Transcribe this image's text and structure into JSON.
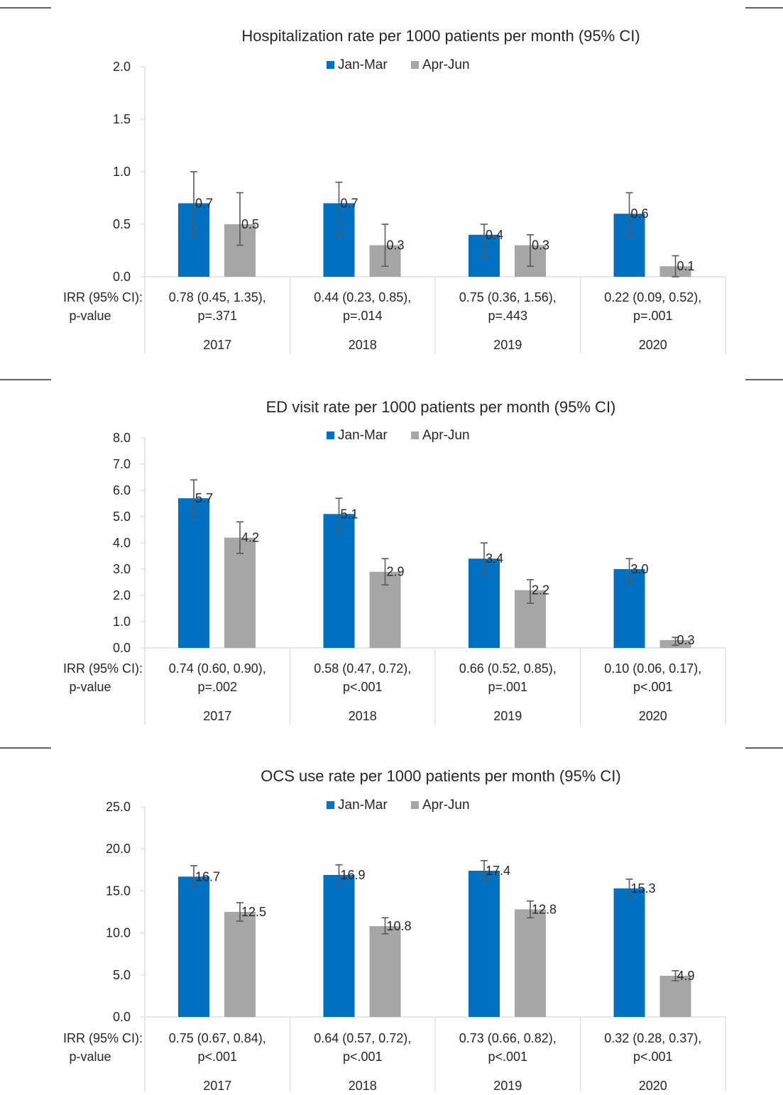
{
  "colors": {
    "jan_mar": "#0070C0",
    "apr_jun": "#A6A6A6",
    "axis": "#D9D9D9",
    "error": "#595959",
    "rule": "#000000"
  },
  "row_label": {
    "line1": "IRR (95% CI):",
    "line2": "p-value"
  },
  "legend": {
    "jan_mar": "Jan-Mar",
    "apr_jun": "Apr-Jun"
  },
  "chart_data": [
    {
      "type": "bar",
      "title": "Hospitalization rate per 1000 patients per month (95% CI)",
      "ylim": [
        0,
        2.0
      ],
      "yticks": [
        "0.0",
        "0.5",
        "1.0",
        "1.5",
        "2.0"
      ],
      "categories": [
        "2017",
        "2018",
        "2019",
        "2020"
      ],
      "irr": [
        [
          "0.78 (0.45, 1.35),",
          "p=.371"
        ],
        [
          "0.44 (0.23, 0.85),",
          "p=.014"
        ],
        [
          "0.75 (0.36, 1.56),",
          "p=.443"
        ],
        [
          "0.22 (0.09, 0.52),",
          "p=.001"
        ]
      ],
      "series": [
        {
          "name": "Jan-Mar",
          "values": [
            0.7,
            0.7,
            0.4,
            0.6
          ],
          "labels": [
            "0.7",
            "0.7",
            "0.4",
            "0.6"
          ],
          "ci": [
            [
              0.4,
              1.0
            ],
            [
              0.4,
              0.9
            ],
            [
              0.2,
              0.5
            ],
            [
              0.4,
              0.8
            ]
          ]
        },
        {
          "name": "Apr-Jun",
          "values": [
            0.5,
            0.3,
            0.3,
            0.1
          ],
          "labels": [
            "0.5",
            "0.3",
            "0.3",
            "0.1"
          ],
          "ci": [
            [
              0.3,
              0.8
            ],
            [
              0.1,
              0.5
            ],
            [
              0.1,
              0.4
            ],
            [
              0.0,
              0.2
            ]
          ]
        }
      ]
    },
    {
      "type": "bar",
      "title": "ED visit rate per 1000 patients per month (95% CI)",
      "ylim": [
        0,
        8.0
      ],
      "yticks": [
        "0.0",
        "1.0",
        "2.0",
        "3.0",
        "4.0",
        "5.0",
        "6.0",
        "7.0",
        "8.0"
      ],
      "categories": [
        "2017",
        "2018",
        "2019",
        "2020"
      ],
      "irr": [
        [
          "0.74 (0.60, 0.90),",
          "p=.002"
        ],
        [
          "0.58 (0.47, 0.72),",
          "p<.001"
        ],
        [
          "0.66 (0.52, 0.85),",
          "p=.001"
        ],
        [
          "0.10 (0.06, 0.17),",
          "p<.001"
        ]
      ],
      "series": [
        {
          "name": "Jan-Mar",
          "values": [
            5.7,
            5.1,
            3.4,
            3.0
          ],
          "labels": [
            "5.7",
            "5.1",
            "3.4",
            "3.0"
          ],
          "ci": [
            [
              5.0,
              6.4
            ],
            [
              4.4,
              5.7
            ],
            [
              2.8,
              4.0
            ],
            [
              2.5,
              3.4
            ]
          ]
        },
        {
          "name": "Apr-Jun",
          "values": [
            4.2,
            2.9,
            2.2,
            0.3
          ],
          "labels": [
            "4.2",
            "2.9",
            "2.2",
            "0.3"
          ],
          "ci": [
            [
              3.6,
              4.8
            ],
            [
              2.4,
              3.4
            ],
            [
              1.7,
              2.6
            ],
            [
              0.1,
              0.4
            ]
          ]
        }
      ]
    },
    {
      "type": "bar",
      "title": "OCS use rate per 1000 patients per month (95% CI)",
      "ylim": [
        0,
        25.0
      ],
      "yticks": [
        "0.0",
        "5.0",
        "10.0",
        "15.0",
        "20.0",
        "25.0"
      ],
      "categories": [
        "2017",
        "2018",
        "2019",
        "2020"
      ],
      "irr": [
        [
          "0.75 (0.67, 0.84),",
          "p<.001"
        ],
        [
          "0.64 (0.57, 0.72),",
          "p<.001"
        ],
        [
          "0.73 (0.66, 0.82),",
          "p<.001"
        ],
        [
          "0.32 (0.28, 0.37),",
          "p<.001"
        ]
      ],
      "series": [
        {
          "name": "Jan-Mar",
          "values": [
            16.7,
            16.9,
            17.4,
            15.3
          ],
          "labels": [
            "16.7",
            "16.9",
            "17.4",
            "15.3"
          ],
          "ci": [
            [
              15.5,
              18.0
            ],
            [
              15.8,
              18.1
            ],
            [
              16.2,
              18.6
            ],
            [
              14.3,
              16.4
            ]
          ]
        },
        {
          "name": "Apr-Jun",
          "values": [
            12.5,
            10.8,
            12.8,
            4.9
          ],
          "labels": [
            "12.5",
            "10.8",
            "12.8",
            "4.9"
          ],
          "ci": [
            [
              11.4,
              13.6
            ],
            [
              9.9,
              11.8
            ],
            [
              11.8,
              13.8
            ],
            [
              4.3,
              5.5
            ]
          ]
        }
      ]
    }
  ]
}
